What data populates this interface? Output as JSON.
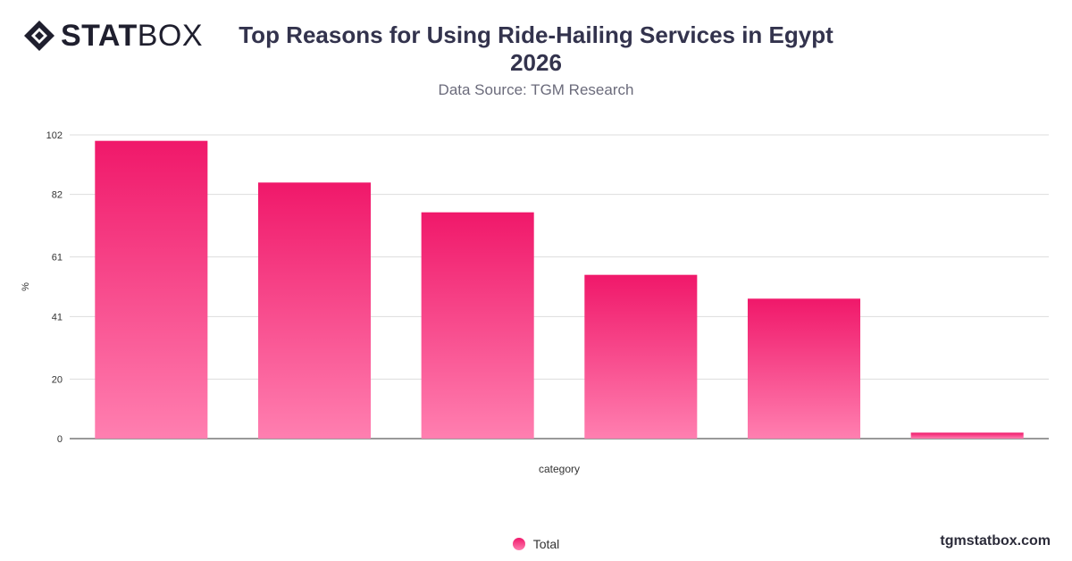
{
  "brand": {
    "logo_stat": "STAT",
    "logo_box": "BOX",
    "site": "tgmstatbox.com"
  },
  "header": {
    "title_line1": "Top Reasons for Using Ride-Hailing Services in Egypt",
    "title_line2": "2026",
    "subtitle": "Data Source: TGM Research"
  },
  "colors": {
    "bar_top": "#f0186a",
    "bar_bottom": "#ff7fb0",
    "grid": "#dddddd",
    "axis_text": "#333333"
  },
  "chart_data": {
    "type": "bar",
    "categories": [
      "",
      "",
      "",
      "",
      "",
      ""
    ],
    "series": [
      {
        "name": "Total",
        "values": [
          100,
          86,
          76,
          55,
          47,
          2
        ]
      }
    ],
    "xlabel": "category",
    "ylabel": "%",
    "yticks": [
      0,
      20,
      41,
      61,
      82,
      102
    ],
    "ylim": [
      0,
      102
    ],
    "grid": true,
    "legend_position": "bottom"
  }
}
